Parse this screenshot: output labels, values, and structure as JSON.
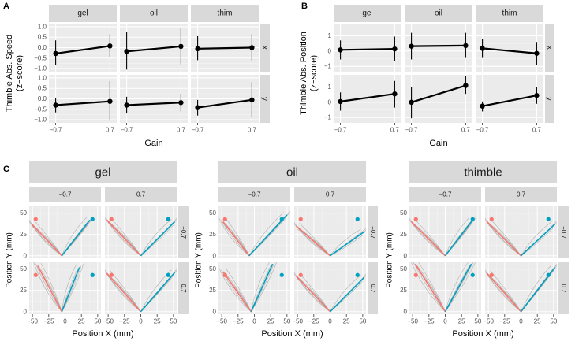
{
  "chart_data": [
    {
      "panel": "A",
      "type": "line",
      "ylabel_line1": "Thimble Abs. Speed",
      "ylabel_line2": "(z−score)",
      "xlabel": "Gain",
      "x_ticks": [
        "−0.7",
        "0.7"
      ],
      "y_ticks": [
        "1.0",
        "0.5",
        "0.0",
        "−0.5",
        "−1.0"
      ],
      "y_tick_values": [
        1.0,
        0.5,
        0.0,
        -0.5,
        -1.0
      ],
      "ylim": [
        -1.15,
        1.15
      ],
      "columns": [
        "gel",
        "oil",
        "thim"
      ],
      "rows": [
        "x",
        "y"
      ],
      "series": [
        {
          "row": "x",
          "col": "gel",
          "mean": [
            -0.28,
            0.08
          ],
          "lo": [
            -0.85,
            -0.45
          ],
          "hi": [
            0.35,
            0.65
          ]
        },
        {
          "row": "x",
          "col": "oil",
          "mean": [
            -0.18,
            0.06
          ],
          "lo": [
            -1.05,
            -0.8
          ],
          "hi": [
            0.75,
            0.95
          ]
        },
        {
          "row": "x",
          "col": "thim",
          "mean": [
            -0.05,
            0.0
          ],
          "lo": [
            -0.6,
            -0.65
          ],
          "hi": [
            0.55,
            0.65
          ]
        },
        {
          "row": "y",
          "col": "gel",
          "mean": [
            -0.3,
            -0.12
          ],
          "lo": [
            -0.65,
            -1.05
          ],
          "hi": [
            0.05,
            0.85
          ]
        },
        {
          "row": "y",
          "col": "oil",
          "mean": [
            -0.3,
            -0.18
          ],
          "lo": [
            -0.7,
            -0.6
          ],
          "hi": [
            0.1,
            0.25
          ]
        },
        {
          "row": "y",
          "col": "thim",
          "mean": [
            -0.42,
            -0.05
          ],
          "lo": [
            -0.8,
            -0.9
          ],
          "hi": [
            -0.05,
            0.8
          ]
        }
      ]
    },
    {
      "panel": "B",
      "type": "line",
      "ylabel_line1": "Thimble Abs. Position",
      "ylabel_line2": "(z−score)",
      "xlabel": "Gain",
      "x_ticks": [
        "−0.7",
        "0.7"
      ],
      "y_ticks": [
        "1",
        "0",
        "−1"
      ],
      "y_tick_values": [
        1,
        0,
        -1
      ],
      "ylim": [
        -1.35,
        1.8
      ],
      "columns": [
        "gel",
        "oil",
        "thim"
      ],
      "rows": [
        "x",
        "y"
      ],
      "series": [
        {
          "row": "x",
          "col": "gel",
          "mean": [
            0.08,
            0.14
          ],
          "lo": [
            -0.55,
            -0.65
          ],
          "hi": [
            0.7,
            0.95
          ]
        },
        {
          "row": "x",
          "col": "oil",
          "mean": [
            0.32,
            0.36
          ],
          "lo": [
            -0.55,
            -0.45
          ],
          "hi": [
            1.2,
            1.2
          ]
        },
        {
          "row": "x",
          "col": "thim",
          "mean": [
            0.18,
            -0.15
          ],
          "lo": [
            -0.45,
            -0.9
          ],
          "hi": [
            0.8,
            0.6
          ]
        },
        {
          "row": "y",
          "col": "gel",
          "mean": [
            0.05,
            0.55
          ],
          "lo": [
            -0.55,
            -0.35
          ],
          "hi": [
            0.65,
            1.4
          ]
        },
        {
          "row": "y",
          "col": "oil",
          "mean": [
            0.0,
            1.1
          ],
          "lo": [
            -1.05,
            0.55
          ],
          "hi": [
            1.0,
            1.7
          ]
        },
        {
          "row": "y",
          "col": "thim",
          "mean": [
            -0.25,
            0.45
          ],
          "lo": [
            -0.6,
            -0.1
          ],
          "hi": [
            0.05,
            1.0
          ]
        }
      ]
    },
    {
      "panel": "C",
      "type": "line",
      "xlabel": "Position X (mm)",
      "ylabel": "Position Y (mm)",
      "groups": [
        "gel",
        "oil",
        "thimble"
      ],
      "gain_levels": [
        "−0.7",
        "0.7"
      ],
      "x_ticks": [
        "−50",
        "−25",
        "0",
        "25",
        "50"
      ],
      "x_tick_values": [
        -50,
        -25,
        0,
        25,
        50
      ],
      "y_ticks": [
        "50",
        "25",
        "0"
      ],
      "y_tick_values": [
        50,
        25,
        0
      ],
      "xlim": [
        -55,
        55
      ],
      "ylim": [
        -3,
        58
      ],
      "red_color": "#F8766D",
      "blue_color": "#00A0C0",
      "dot_left": [
        -45,
        43
      ],
      "dot_right": [
        42,
        43
      ],
      "panels": [
        {
          "group": "gel",
          "col": "−0.7",
          "row": "−0.7",
          "vertex": [
            -5,
            0
          ],
          "red_end": [
            -52,
            38
          ],
          "blue_end": [
            38,
            42
          ]
        },
        {
          "group": "gel",
          "col": "0.7",
          "row": "−0.7",
          "vertex": [
            0,
            0
          ],
          "red_end": [
            -52,
            42
          ],
          "blue_end": [
            52,
            40
          ]
        },
        {
          "group": "gel",
          "col": "−0.7",
          "row": "0.7",
          "vertex": [
            -5,
            0
          ],
          "red_end": [
            -42,
            54
          ],
          "blue_end": [
            22,
            52
          ]
        },
        {
          "group": "gel",
          "col": "0.7",
          "row": "0.7",
          "vertex": [
            0,
            0
          ],
          "red_end": [
            -52,
            45
          ],
          "blue_end": [
            52,
            46
          ]
        },
        {
          "group": "oil",
          "col": "−0.7",
          "row": "−0.7",
          "vertex": [
            -8,
            0
          ],
          "red_end": [
            -48,
            40
          ],
          "blue_end": [
            50,
            48
          ]
        },
        {
          "group": "oil",
          "col": "0.7",
          "row": "−0.7",
          "vertex": [
            0,
            0
          ],
          "red_end": [
            -52,
            35
          ],
          "blue_end": [
            52,
            28
          ]
        },
        {
          "group": "oil",
          "col": "−0.7",
          "row": "0.7",
          "vertex": [
            -5,
            0
          ],
          "red_end": [
            -48,
            47
          ],
          "blue_end": [
            28,
            56
          ]
        },
        {
          "group": "oil",
          "col": "0.7",
          "row": "0.7",
          "vertex": [
            0,
            0
          ],
          "red_end": [
            -52,
            42
          ],
          "blue_end": [
            52,
            40
          ]
        },
        {
          "group": "thimble",
          "col": "−0.7",
          "row": "−0.7",
          "vertex": [
            0,
            0
          ],
          "red_end": [
            -52,
            40
          ],
          "blue_end": [
            42,
            42
          ]
        },
        {
          "group": "thimble",
          "col": "0.7",
          "row": "−0.7",
          "vertex": [
            0,
            0
          ],
          "red_end": [
            -52,
            40
          ],
          "blue_end": [
            52,
            37
          ]
        },
        {
          "group": "thimble",
          "col": "−0.7",
          "row": "0.7",
          "vertex": [
            0,
            0
          ],
          "red_end": [
            -46,
            56
          ],
          "blue_end": [
            40,
            56
          ]
        },
        {
          "group": "thimble",
          "col": "0.7",
          "row": "0.7",
          "vertex": [
            0,
            0
          ],
          "red_end": [
            -52,
            45
          ],
          "blue_end": [
            52,
            52
          ]
        }
      ]
    }
  ]
}
